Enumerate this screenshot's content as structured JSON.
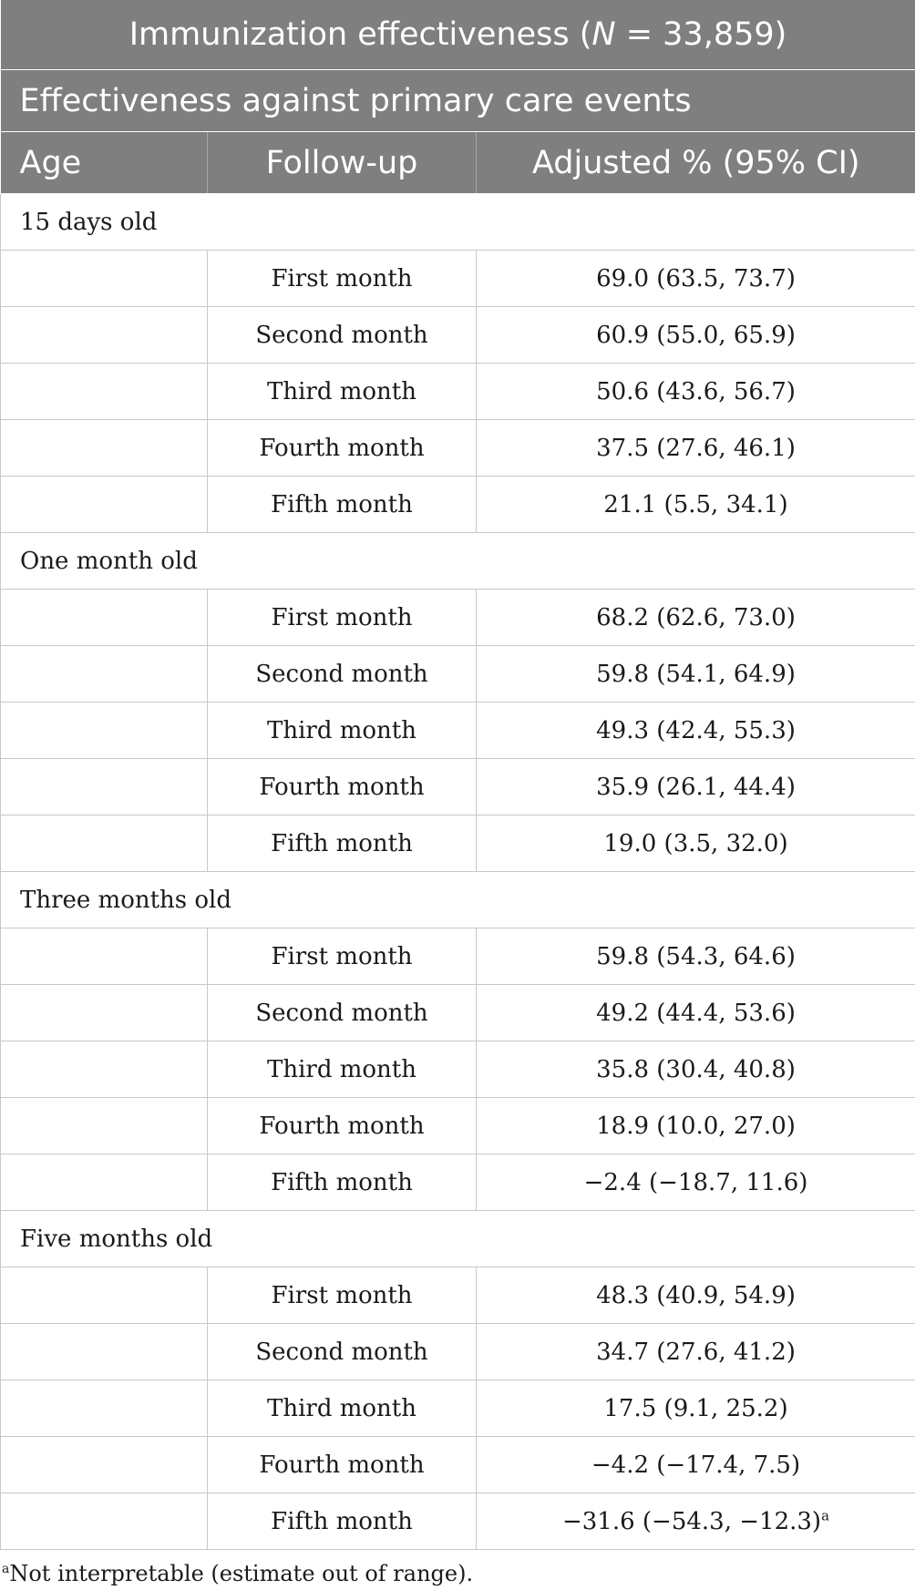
{
  "table": {
    "title_prefix": "Immunization effectiveness (",
    "title_italic": "N",
    "title_suffix": " = 33,859)",
    "subtitle": "Effectiveness against primary care events",
    "columns": [
      "Age",
      "Follow-up",
      "Adjusted % (95% CI)"
    ],
    "groups": [
      {
        "label": "15 days old",
        "rows": [
          {
            "follow_up": "First month",
            "value": "69.0 (63.5, 73.7)"
          },
          {
            "follow_up": "Second month",
            "value": "60.9 (55.0, 65.9)"
          },
          {
            "follow_up": "Third month",
            "value": "50.6 (43.6, 56.7)"
          },
          {
            "follow_up": "Fourth month",
            "value": "37.5 (27.6, 46.1)"
          },
          {
            "follow_up": "Fifth month",
            "value": "21.1 (5.5, 34.1)"
          }
        ]
      },
      {
        "label": "One month old",
        "rows": [
          {
            "follow_up": "First month",
            "value": "68.2 (62.6, 73.0)"
          },
          {
            "follow_up": "Second month",
            "value": "59.8 (54.1, 64.9)"
          },
          {
            "follow_up": "Third month",
            "value": "49.3 (42.4, 55.3)"
          },
          {
            "follow_up": "Fourth month",
            "value": "35.9 (26.1, 44.4)"
          },
          {
            "follow_up": "Fifth month",
            "value": "19.0 (3.5, 32.0)"
          }
        ]
      },
      {
        "label": "Three months old",
        "rows": [
          {
            "follow_up": "First month",
            "value": "59.8 (54.3, 64.6)"
          },
          {
            "follow_up": "Second month",
            "value": "49.2 (44.4, 53.6)"
          },
          {
            "follow_up": "Third month",
            "value": "35.8 (30.4, 40.8)"
          },
          {
            "follow_up": "Fourth month",
            "value": "18.9 (10.0, 27.0)"
          },
          {
            "follow_up": "Fifth month",
            "value": "−2.4 (−18.7, 11.6)"
          }
        ]
      },
      {
        "label": "Five months old",
        "rows": [
          {
            "follow_up": "First month",
            "value": "48.3 (40.9, 54.9)"
          },
          {
            "follow_up": "Second month",
            "value": "34.7 (27.6, 41.2)"
          },
          {
            "follow_up": "Third month",
            "value": "17.5 (9.1, 25.2)"
          },
          {
            "follow_up": "Fourth month",
            "value": "−4.2 (−17.4, 7.5)"
          },
          {
            "follow_up": "Fifth month",
            "value": "−31.6 (−54.3, −12.3)",
            "footnote_marker": "a"
          }
        ]
      }
    ],
    "footnote": {
      "marker": "a",
      "text": "Not interpretable (estimate out of range)."
    }
  }
}
